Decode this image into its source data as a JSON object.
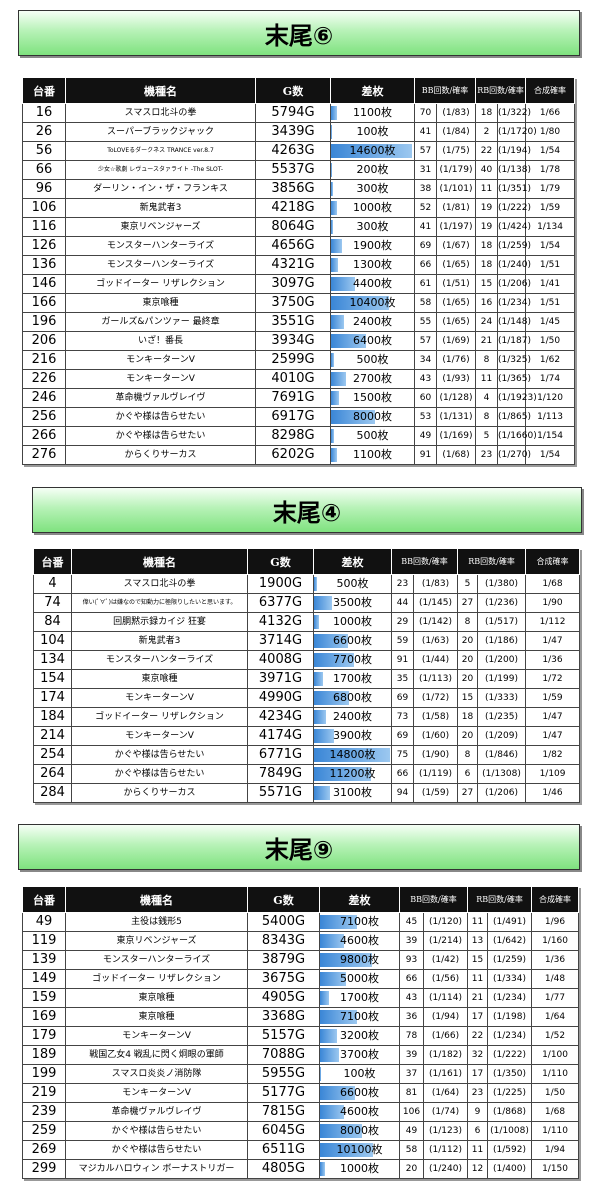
{
  "headers": {
    "machine_no": "台番",
    "model": "機種名",
    "games": "G数",
    "diff": "差枚",
    "bb": "BB回数/確率",
    "rb": "RB回数/確率",
    "total": "合成確率"
  },
  "accent": {
    "banner_green": "#8fe68f",
    "bar_blue": "#3a86d6",
    "header_bg": "#111111"
  },
  "sections": [
    {
      "title": "末尾⑥",
      "rows": [
        {
          "no": "16",
          "model": "スマスロ北斗の拳",
          "g": "5794G",
          "diff": "1100枚",
          "diff_value": 1100,
          "bb": "70",
          "bbp": "(1/83)",
          "rb": "18",
          "rbp": "(1/322)",
          "total": "1/66"
        },
        {
          "no": "26",
          "model": "スーパーブラックジャック",
          "g": "3439G",
          "diff": "100枚",
          "diff_value": 100,
          "bb": "41",
          "bbp": "(1/84)",
          "rb": "2",
          "rbp": "(1/1720)",
          "total": "1/80"
        },
        {
          "no": "56",
          "model": "ToLOVEるダークネス TRANCE ver.8.7",
          "g": "4263G",
          "diff": "14600枚",
          "diff_value": 14600,
          "bb": "57",
          "bbp": "(1/75)",
          "rb": "22",
          "rbp": "(1/194)",
          "total": "1/54"
        },
        {
          "no": "66",
          "model": "少女☆歌劇 レヴュースタァライト -The SLOT-",
          "g": "5537G",
          "diff": "200枚",
          "diff_value": 200,
          "bb": "31",
          "bbp": "(1/179)",
          "rb": "40",
          "rbp": "(1/138)",
          "total": "1/78"
        },
        {
          "no": "96",
          "model": "ダーリン・イン・ザ・フランキス",
          "g": "3856G",
          "diff": "300枚",
          "diff_value": 300,
          "bb": "38",
          "bbp": "(1/101)",
          "rb": "11",
          "rbp": "(1/351)",
          "total": "1/79"
        },
        {
          "no": "106",
          "model": "新鬼武者3",
          "g": "4218G",
          "diff": "1000枚",
          "diff_value": 1000,
          "bb": "52",
          "bbp": "(1/81)",
          "rb": "19",
          "rbp": "(1/222)",
          "total": "1/59"
        },
        {
          "no": "116",
          "model": "東京リベンジャーズ",
          "g": "8064G",
          "diff": "300枚",
          "diff_value": 300,
          "bb": "41",
          "bbp": "(1/197)",
          "rb": "19",
          "rbp": "(1/424)",
          "total": "1/134"
        },
        {
          "no": "126",
          "model": "モンスターハンターライズ",
          "g": "4656G",
          "diff": "1900枚",
          "diff_value": 1900,
          "bb": "69",
          "bbp": "(1/67)",
          "rb": "18",
          "rbp": "(1/259)",
          "total": "1/54"
        },
        {
          "no": "136",
          "model": "モンスターハンターライズ",
          "g": "4321G",
          "diff": "1300枚",
          "diff_value": 1300,
          "bb": "66",
          "bbp": "(1/65)",
          "rb": "18",
          "rbp": "(1/240)",
          "total": "1/51"
        },
        {
          "no": "146",
          "model": "ゴッドイーター リザレクション",
          "g": "3097G",
          "diff": "4400枚",
          "diff_value": 4400,
          "bb": "61",
          "bbp": "(1/51)",
          "rb": "15",
          "rbp": "(1/206)",
          "total": "1/41"
        },
        {
          "no": "166",
          "model": "東京喰種",
          "g": "3750G",
          "diff": "10400枚",
          "diff_value": 10400,
          "bb": "58",
          "bbp": "(1/65)",
          "rb": "16",
          "rbp": "(1/234)",
          "total": "1/51"
        },
        {
          "no": "196",
          "model": "ガールズ&パンツァー 最終章",
          "g": "3551G",
          "diff": "2400枚",
          "diff_value": 2400,
          "bb": "55",
          "bbp": "(1/65)",
          "rb": "24",
          "rbp": "(1/148)",
          "total": "1/45"
        },
        {
          "no": "206",
          "model": "いざ！番長",
          "g": "3934G",
          "diff": "6400枚",
          "diff_value": 6400,
          "bb": "57",
          "bbp": "(1/69)",
          "rb": "21",
          "rbp": "(1/187)",
          "total": "1/50"
        },
        {
          "no": "216",
          "model": "モンキーターンV",
          "g": "2599G",
          "diff": "500枚",
          "diff_value": 500,
          "bb": "34",
          "bbp": "(1/76)",
          "rb": "8",
          "rbp": "(1/325)",
          "total": "1/62"
        },
        {
          "no": "226",
          "model": "モンキーターンV",
          "g": "4010G",
          "diff": "2700枚",
          "diff_value": 2700,
          "bb": "43",
          "bbp": "(1/93)",
          "rb": "11",
          "rbp": "(1/365)",
          "total": "1/74"
        },
        {
          "no": "246",
          "model": "革命機ヴァルヴレイヴ",
          "g": "7691G",
          "diff": "1500枚",
          "diff_value": 1500,
          "bb": "60",
          "bbp": "(1/128)",
          "rb": "4",
          "rbp": "(1/1923)",
          "total": "1/120"
        },
        {
          "no": "256",
          "model": "かぐや様は告らせたい",
          "g": "6917G",
          "diff": "8000枚",
          "diff_value": 8000,
          "bb": "53",
          "bbp": "(1/131)",
          "rb": "8",
          "rbp": "(1/865)",
          "total": "1/113"
        },
        {
          "no": "266",
          "model": "かぐや様は告らせたい",
          "g": "8298G",
          "diff": "500枚",
          "diff_value": 500,
          "bb": "49",
          "bbp": "(1/169)",
          "rb": "5",
          "rbp": "(1/1660)",
          "total": "1/154"
        },
        {
          "no": "276",
          "model": "からくりサーカス",
          "g": "6202G",
          "diff": "1100枚",
          "diff_value": 1100,
          "bb": "91",
          "bbp": "(1/68)",
          "rb": "23",
          "rbp": "(1/270)",
          "total": "1/54"
        }
      ]
    },
    {
      "title": "末尾④",
      "rows": [
        {
          "no": "4",
          "model": "スマスロ北斗の拳",
          "g": "1900G",
          "diff": "500枚",
          "diff_value": 500,
          "bb": "23",
          "bbp": "(1/83)",
          "rb": "5",
          "rbp": "(1/380)",
          "total": "1/68"
        },
        {
          "no": "74",
          "model": "偉い(ﾟ∀ﾟ)は嫌なので知動力に極限りしたいと思います。",
          "g": "6377G",
          "diff": "3500枚",
          "diff_value": 3500,
          "bb": "44",
          "bbp": "(1/145)",
          "rb": "27",
          "rbp": "(1/236)",
          "total": "1/90"
        },
        {
          "no": "84",
          "model": "回胴黙示録カイジ 狂宴",
          "g": "4132G",
          "diff": "1000枚",
          "diff_value": 1000,
          "bb": "29",
          "bbp": "(1/142)",
          "rb": "8",
          "rbp": "(1/517)",
          "total": "1/112"
        },
        {
          "no": "104",
          "model": "新鬼武者3",
          "g": "3714G",
          "diff": "6600枚",
          "diff_value": 6600,
          "bb": "59",
          "bbp": "(1/63)",
          "rb": "20",
          "rbp": "(1/186)",
          "total": "1/47"
        },
        {
          "no": "134",
          "model": "モンスターハンターライズ",
          "g": "4008G",
          "diff": "7700枚",
          "diff_value": 7700,
          "bb": "91",
          "bbp": "(1/44)",
          "rb": "20",
          "rbp": "(1/200)",
          "total": "1/36"
        },
        {
          "no": "154",
          "model": "東京喰種",
          "g": "3971G",
          "diff": "1700枚",
          "diff_value": 1700,
          "bb": "35",
          "bbp": "(1/113)",
          "rb": "20",
          "rbp": "(1/199)",
          "total": "1/72"
        },
        {
          "no": "174",
          "model": "モンキーターンV",
          "g": "4990G",
          "diff": "6800枚",
          "diff_value": 6800,
          "bb": "69",
          "bbp": "(1/72)",
          "rb": "15",
          "rbp": "(1/333)",
          "total": "1/59"
        },
        {
          "no": "184",
          "model": "ゴッドイーター リザレクション",
          "g": "4234G",
          "diff": "2400枚",
          "diff_value": 2400,
          "bb": "73",
          "bbp": "(1/58)",
          "rb": "18",
          "rbp": "(1/235)",
          "total": "1/47"
        },
        {
          "no": "214",
          "model": "モンキーターンV",
          "g": "4174G",
          "diff": "3900枚",
          "diff_value": 3900,
          "bb": "69",
          "bbp": "(1/60)",
          "rb": "20",
          "rbp": "(1/209)",
          "total": "1/47"
        },
        {
          "no": "254",
          "model": "かぐや様は告らせたい",
          "g": "6771G",
          "diff": "14800枚",
          "diff_value": 14800,
          "bb": "75",
          "bbp": "(1/90)",
          "rb": "8",
          "rbp": "(1/846)",
          "total": "1/82"
        },
        {
          "no": "264",
          "model": "かぐや様は告らせたい",
          "g": "7849G",
          "diff": "11200枚",
          "diff_value": 11200,
          "bb": "66",
          "bbp": "(1/119)",
          "rb": "6",
          "rbp": "(1/1308)",
          "total": "1/109"
        },
        {
          "no": "284",
          "model": "からくりサーカス",
          "g": "5571G",
          "diff": "3100枚",
          "diff_value": 3100,
          "bb": "94",
          "bbp": "(1/59)",
          "rb": "27",
          "rbp": "(1/206)",
          "total": "1/46"
        }
      ]
    },
    {
      "title": "末尾⑨",
      "rows": [
        {
          "no": "49",
          "model": "主役は銭形5",
          "g": "5400G",
          "diff": "7100枚",
          "diff_value": 7100,
          "bb": "45",
          "bbp": "(1/120)",
          "rb": "11",
          "rbp": "(1/491)",
          "total": "1/96"
        },
        {
          "no": "119",
          "model": "東京リベンジャーズ",
          "g": "8343G",
          "diff": "4600枚",
          "diff_value": 4600,
          "bb": "39",
          "bbp": "(1/214)",
          "rb": "13",
          "rbp": "(1/642)",
          "total": "1/160"
        },
        {
          "no": "139",
          "model": "モンスターハンターライズ",
          "g": "3879G",
          "diff": "9800枚",
          "diff_value": 9800,
          "bb": "93",
          "bbp": "(1/42)",
          "rb": "15",
          "rbp": "(1/259)",
          "total": "1/36"
        },
        {
          "no": "149",
          "model": "ゴッドイーター リザレクション",
          "g": "3675G",
          "diff": "5000枚",
          "diff_value": 5000,
          "bb": "66",
          "bbp": "(1/56)",
          "rb": "11",
          "rbp": "(1/334)",
          "total": "1/48"
        },
        {
          "no": "159",
          "model": "東京喰種",
          "g": "4905G",
          "diff": "1700枚",
          "diff_value": 1700,
          "bb": "43",
          "bbp": "(1/114)",
          "rb": "21",
          "rbp": "(1/234)",
          "total": "1/77"
        },
        {
          "no": "169",
          "model": "東京喰種",
          "g": "3368G",
          "diff": "7100枚",
          "diff_value": 7100,
          "bb": "36",
          "bbp": "(1/94)",
          "rb": "17",
          "rbp": "(1/198)",
          "total": "1/64"
        },
        {
          "no": "179",
          "model": "モンキーターンV",
          "g": "5157G",
          "diff": "3200枚",
          "diff_value": 3200,
          "bb": "78",
          "bbp": "(1/66)",
          "rb": "22",
          "rbp": "(1/234)",
          "total": "1/52"
        },
        {
          "no": "189",
          "model": "戦国乙女4 戦乱に閃く炯眼の軍師",
          "g": "7088G",
          "diff": "3700枚",
          "diff_value": 3700,
          "bb": "39",
          "bbp": "(1/182)",
          "rb": "32",
          "rbp": "(1/222)",
          "total": "1/100"
        },
        {
          "no": "199",
          "model": "スマスロ炎炎ノ消防隊",
          "g": "5955G",
          "diff": "100枚",
          "diff_value": 100,
          "bb": "37",
          "bbp": "(1/161)",
          "rb": "17",
          "rbp": "(1/350)",
          "total": "1/110"
        },
        {
          "no": "219",
          "model": "モンキーターンV",
          "g": "5177G",
          "diff": "6600枚",
          "diff_value": 6600,
          "bb": "81",
          "bbp": "(1/64)",
          "rb": "23",
          "rbp": "(1/225)",
          "total": "1/50"
        },
        {
          "no": "239",
          "model": "革命機ヴァルヴレイヴ",
          "g": "7815G",
          "diff": "4600枚",
          "diff_value": 4600,
          "bb": "106",
          "bbp": "(1/74)",
          "rb": "9",
          "rbp": "(1/868)",
          "total": "1/68"
        },
        {
          "no": "259",
          "model": "かぐや様は告らせたい",
          "g": "6045G",
          "diff": "8000枚",
          "diff_value": 8000,
          "bb": "49",
          "bbp": "(1/123)",
          "rb": "6",
          "rbp": "(1/1008)",
          "total": "1/110"
        },
        {
          "no": "269",
          "model": "かぐや様は告らせたい",
          "g": "6511G",
          "diff": "10100枚",
          "diff_value": 10100,
          "bb": "58",
          "bbp": "(1/112)",
          "rb": "11",
          "rbp": "(1/592)",
          "total": "1/94"
        },
        {
          "no": "299",
          "model": "マジカルハロウィン ボーナストリガー",
          "g": "4805G",
          "diff": "1000枚",
          "diff_value": 1000,
          "bb": "20",
          "bbp": "(1/240)",
          "rb": "12",
          "rbp": "(1/400)",
          "total": "1/150"
        }
      ]
    }
  ]
}
